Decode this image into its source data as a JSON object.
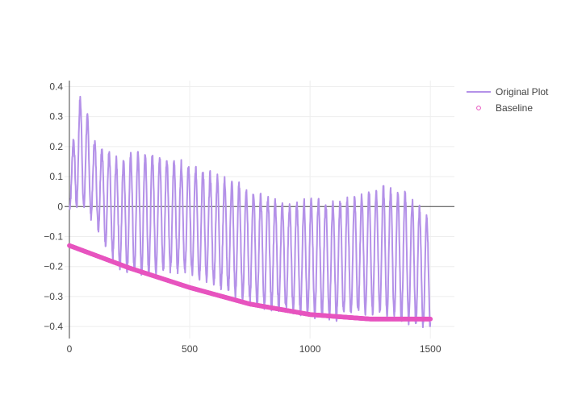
{
  "chart_data": {
    "type": "line",
    "xlim": [
      -20,
      1600
    ],
    "ylim": [
      -0.44,
      0.42
    ],
    "x_ticks": [
      0,
      500,
      1000,
      1500
    ],
    "y_ticks": [
      0.4,
      0.3,
      0.2,
      0.1,
      0,
      -0.1,
      -0.2,
      -0.3,
      -0.4
    ],
    "x_tick_labels": [
      "0",
      "500",
      "1000",
      "1500"
    ],
    "y_tick_labels": [
      "0.4",
      "0.3",
      "0.2",
      "0.1",
      "0",
      "−0.1",
      "−0.2",
      "−0.3",
      "−0.4"
    ],
    "grid": true,
    "legend_position": "top-right",
    "series": [
      {
        "name": "Original Plot",
        "mode": "lines",
        "color": "#b491e8",
        "x_range": [
          0,
          1500
        ],
        "n_points": 1501,
        "oscillation_period": 30,
        "envelope_x": [
          0,
          30,
          60,
          100,
          200,
          300,
          400,
          500,
          600,
          700,
          800,
          900,
          1000,
          1100,
          1200,
          1300,
          1400,
          1500
        ],
        "envelope_upper": [
          0.05,
          0.37,
          0.34,
          0.22,
          0.15,
          0.18,
          0.16,
          0.13,
          0.1,
          0.07,
          0.03,
          0.0,
          0.02,
          0.01,
          0.03,
          0.06,
          0.04,
          -0.05
        ],
        "envelope_lower": [
          0.0,
          0.0,
          0.0,
          -0.04,
          -0.2,
          -0.22,
          -0.21,
          -0.22,
          -0.26,
          -0.3,
          -0.33,
          -0.34,
          -0.36,
          -0.37,
          -0.35,
          -0.35,
          -0.38,
          -0.4
        ]
      },
      {
        "name": "Baseline",
        "mode": "markers",
        "color": "#e754bf",
        "x_range": [
          0,
          1500
        ],
        "curve_x": [
          0,
          250,
          500,
          750,
          1000,
          1250,
          1500
        ],
        "curve_y": [
          -0.13,
          -0.205,
          -0.27,
          -0.325,
          -0.36,
          -0.375,
          -0.375
        ]
      }
    ]
  }
}
